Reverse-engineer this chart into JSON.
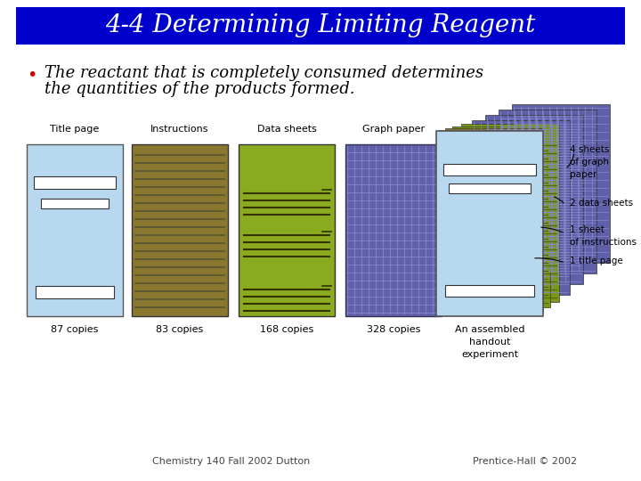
{
  "title": "4-4 Determining Limiting Reagent",
  "title_bg_color": "#0000CC",
  "title_text_color": "#FFFFFF",
  "bg_color": "#FFFFFF",
  "bullet_color": "#CC0000",
  "bullet_text_line1": "The reactant that is completely consumed determines",
  "bullet_text_line2": "the quantities of the products formed.",
  "bullet_text_color": "#000000",
  "footer_left": "Chemistry 140 Fall 2002 Dutton",
  "footer_right": "Prentice-Hall © 2002",
  "footer_color": "#444444",
  "title_page_color": "#B8D8F0",
  "instructions_color": "#8B7830",
  "data_sheets_color": "#8AAA20",
  "graph_paper_color": "#6060A8",
  "assembled_color": "#B8D8F0",
  "stack_graph_color": "#6060A8",
  "stack_datasheet_color": "#7A9818",
  "stack_instructions_color": "#8B7830",
  "stack_title_color": "#B8D8F0"
}
